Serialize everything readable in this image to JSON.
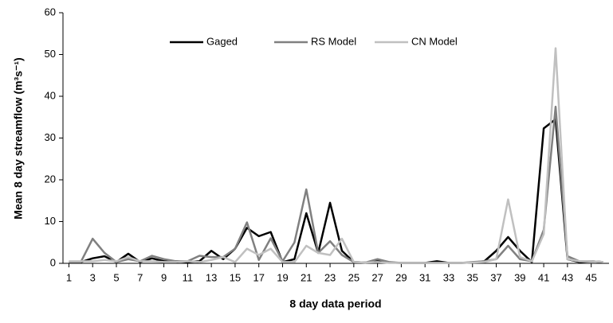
{
  "chart_data": {
    "type": "line",
    "x": [
      1,
      2,
      3,
      4,
      5,
      6,
      7,
      8,
      9,
      10,
      11,
      12,
      13,
      14,
      15,
      16,
      17,
      18,
      19,
      20,
      21,
      22,
      23,
      24,
      25,
      26,
      27,
      28,
      29,
      30,
      31,
      32,
      33,
      34,
      35,
      36,
      37,
      38,
      39,
      40,
      41,
      42,
      43,
      44,
      45,
      46
    ],
    "series": [
      {
        "name": "Gaged",
        "color": "#000000",
        "values": [
          0.3,
          0.3,
          1.2,
          1.7,
          0.3,
          2.3,
          0.3,
          1.2,
          0.5,
          0.5,
          0.3,
          0.5,
          3,
          1,
          3.5,
          8.5,
          6.5,
          7.5,
          0.3,
          1,
          12,
          2.5,
          14.5,
          3,
          0.3,
          0.2,
          0.5,
          0.2,
          0.1,
          0.1,
          0.1,
          0.5,
          0.1,
          0.1,
          0.2,
          0.5,
          3,
          6.3,
          3,
          0.3,
          32.3,
          34.5,
          1,
          0.3,
          0.5,
          0.3
        ]
      },
      {
        "name": "RS Model",
        "color": "#808080",
        "values": [
          0.3,
          0.3,
          5.9,
          2.5,
          0.3,
          1,
          0.5,
          1.8,
          1,
          0.5,
          0.5,
          1.8,
          1.5,
          1.5,
          3.5,
          9.8,
          0.8,
          6,
          0.5,
          5,
          17.7,
          2.5,
          5.3,
          2,
          0.3,
          0.2,
          1,
          0.3,
          0.1,
          0.1,
          0.1,
          0.1,
          0.1,
          0.1,
          0.3,
          0.5,
          1,
          4.2,
          1,
          0.5,
          8,
          37.5,
          1.7,
          0.5,
          0.5,
          0.3
        ]
      },
      {
        "name": "CN Model",
        "color": "#c0c0c0",
        "values": [
          0.5,
          0.5,
          0.5,
          0.8,
          0.5,
          1.5,
          0.5,
          0.5,
          0.3,
          0.3,
          0.5,
          0.3,
          0.8,
          1.5,
          0.3,
          3.5,
          2,
          3.5,
          0.3,
          0.3,
          4.2,
          2.5,
          2,
          5.9,
          0.3,
          0.2,
          0.3,
          0.1,
          0.1,
          0.1,
          0.1,
          0.1,
          0.1,
          0.1,
          0.2,
          0.3,
          1,
          15.3,
          1.5,
          0.5,
          7,
          51.5,
          1,
          0.5,
          0.5,
          0.3
        ]
      }
    ],
    "xlabel": "8 day data period",
    "ylabel": "Mean 8 day streamflow (m³s⁻¹)",
    "xlim": [
      0.5,
      46.5
    ],
    "xticks": [
      1,
      3,
      5,
      7,
      9,
      11,
      13,
      15,
      17,
      19,
      21,
      23,
      25,
      27,
      29,
      31,
      33,
      35,
      37,
      39,
      41,
      43,
      45
    ],
    "ylim": [
      0,
      60
    ],
    "yticks": [
      0,
      10,
      20,
      30,
      40,
      50,
      60
    ],
    "legend": "top"
  }
}
